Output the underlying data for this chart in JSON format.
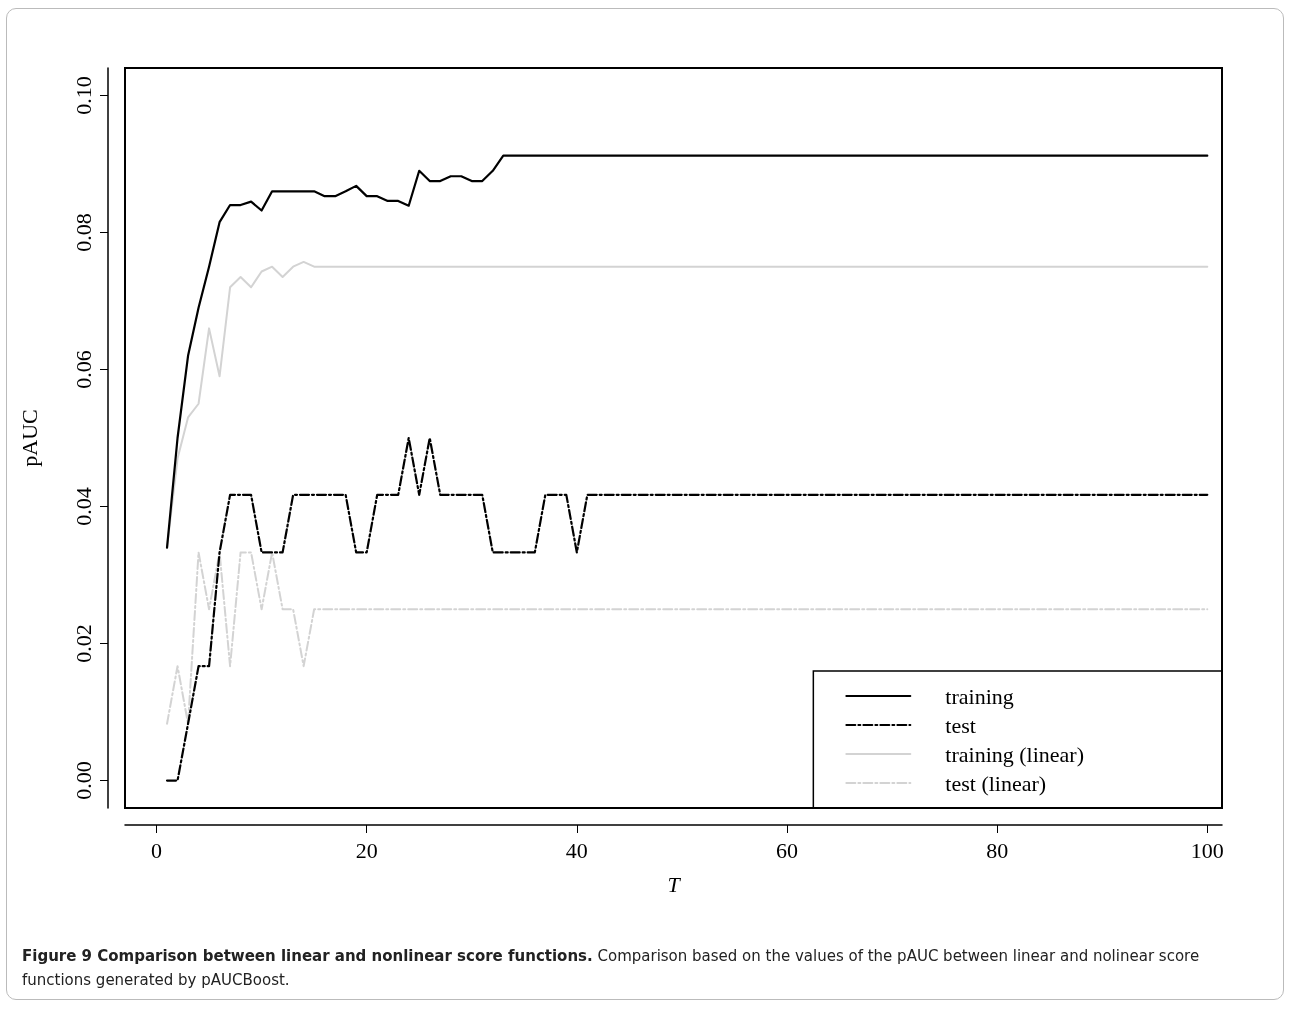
{
  "chart_data": {
    "type": "line",
    "title": "Figure 9 Comparison between linear and nonlinear score functions.",
    "annotations": [
      "Comparison based on the values of the pAUC between linear and nolinear score functions generated by pAUCBoost."
    ],
    "xlabel": "T",
    "ylabel": "pAUC",
    "x": [
      1,
      2,
      3,
      4,
      5,
      6,
      7,
      8,
      9,
      10,
      11,
      12,
      13,
      14,
      15,
      16,
      17,
      18,
      19,
      20,
      21,
      22,
      23,
      24,
      25,
      26,
      27,
      28,
      29,
      30,
      31,
      32,
      33,
      34,
      35,
      36,
      37,
      38,
      39,
      40,
      41,
      100
    ],
    "series": [
      {
        "name": "training",
        "color": "#000000",
        "line_style": "solid",
        "values": [
          0.034,
          0.05,
          0.062,
          0.069,
          0.075,
          0.0815,
          0.084,
          0.084,
          0.0845,
          0.0832,
          0.086,
          0.086,
          0.086,
          0.086,
          0.086,
          0.0853,
          0.0853,
          0.086,
          0.0868,
          0.0853,
          0.0853,
          0.0846,
          0.0846,
          0.0839,
          0.089,
          0.0875,
          0.0875,
          0.0882,
          0.0882,
          0.0875,
          0.0875,
          0.089,
          0.0912,
          0.0912,
          0.0912,
          0.0912,
          0.0912,
          0.0912,
          0.0912,
          0.0912,
          0.0912,
          0.0912
        ]
      },
      {
        "name": "test",
        "color": "#000000",
        "line_style": "dashdot",
        "values": [
          0,
          0,
          0.0083,
          0.0167,
          0.0167,
          0.0333,
          0.0417,
          0.0417,
          0.0417,
          0.0333,
          0.0333,
          0.0333,
          0.0417,
          0.0417,
          0.0417,
          0.0417,
          0.0417,
          0.0417,
          0.0333,
          0.0333,
          0.0417,
          0.0417,
          0.0417,
          0.05,
          0.0417,
          0.05,
          0.0417,
          0.0417,
          0.0417,
          0.0417,
          0.0417,
          0.0333,
          0.0333,
          0.0333,
          0.0333,
          0.0333,
          0.0417,
          0.0417,
          0.0417,
          0.0333,
          0.0417,
          0.0417
        ]
      },
      {
        "name": "training (linear)",
        "color": "#d3d3d3",
        "line_style": "solid",
        "values": [
          0.034,
          0.047,
          0.053,
          0.055,
          0.066,
          0.059,
          0.072,
          0.0735,
          0.072,
          0.0743,
          0.075,
          0.0735,
          0.075,
          0.0757,
          0.075,
          0.075,
          0.075,
          0.075,
          0.075,
          0.075,
          0.075,
          0.075,
          0.075,
          0.075,
          0.075,
          0.075,
          0.075,
          0.075,
          0.075,
          0.075,
          0.075,
          0.075,
          0.075,
          0.075,
          0.075,
          0.075,
          0.075,
          0.075,
          0.075,
          0.075,
          0.075,
          0.075
        ]
      },
      {
        "name": "test (linear)",
        "color": "#d3d3d3",
        "line_style": "dashdot",
        "values": [
          0.0083,
          0.0167,
          0.0083,
          0.0333,
          0.025,
          0.0333,
          0.0167,
          0.0333,
          0.0333,
          0.025,
          0.0333,
          0.025,
          0.025,
          0.0167,
          0.025,
          0.025,
          0.025,
          0.025,
          0.025,
          0.025,
          0.025,
          0.025,
          0.025,
          0.025,
          0.025,
          0.025,
          0.025,
          0.025,
          0.025,
          0.025,
          0.025,
          0.025,
          0.025,
          0.025,
          0.025,
          0.025,
          0.025,
          0.025,
          0.025,
          0.025,
          0.025,
          0.025
        ]
      }
    ],
    "xlim": [
      -3,
      101.4
    ],
    "xticks": [
      0,
      20,
      40,
      60,
      80,
      100
    ],
    "ylim": [
      -0.004,
      0.104
    ],
    "yticks": [
      {
        "value": 0,
        "label": "0.00"
      },
      {
        "value": 0.02,
        "label": "0.02"
      },
      {
        "value": 0.04,
        "label": "0.04"
      },
      {
        "value": 0.06,
        "label": "0.06"
      },
      {
        "value": 0.08,
        "label": "0.08"
      },
      {
        "value": 0.1,
        "label": "0.10"
      }
    ],
    "grid": false,
    "legend": "bottom right",
    "marker": "none"
  }
}
